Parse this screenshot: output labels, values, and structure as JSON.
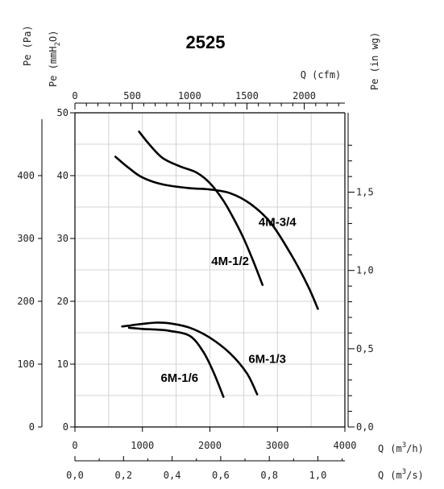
{
  "chart_data": {
    "type": "line",
    "title": "2525",
    "x_axes": {
      "bottom_primary": {
        "label_prefix": "Q",
        "unit": "(m3/h)",
        "unit_base": "(m",
        "unit_sup": "3",
        "unit_end": "/h)",
        "range": [
          0,
          4000
        ],
        "ticks": [
          "0",
          "1000",
          "2000",
          "3000",
          "4000"
        ]
      },
      "bottom_secondary": {
        "label_prefix": "Q",
        "unit": "(m3/s)",
        "unit_base": "(m",
        "unit_sup": "3",
        "unit_end": "/s)",
        "ticks": [
          "0,0",
          "0,2",
          "0,4",
          "0,6",
          "0,8",
          "1,0"
        ]
      },
      "top": {
        "label": "Q (cfm)",
        "ticks": [
          "0",
          "500",
          "1000",
          "1500",
          "2000"
        ]
      }
    },
    "y_axes": {
      "left_pa": {
        "label": "Pe (Pa)",
        "range": [
          0,
          500
        ],
        "ticks": [
          "0",
          "100",
          "200",
          "300",
          "400"
        ]
      },
      "left_mmh2o": {
        "label_base": "Pe (mmH",
        "label_sub": "2",
        "label_end": "O)",
        "range": [
          0,
          50
        ],
        "ticks": [
          "0",
          "10",
          "20",
          "30",
          "40",
          "50"
        ]
      },
      "right_inwg": {
        "label": "Pe (in wg)",
        "ticks": [
          "0,0",
          "0,5",
          "1,0",
          "1,5"
        ]
      }
    },
    "grid": true,
    "series": [
      {
        "name": "4M-3/4",
        "x": [
          600,
          800,
          1000,
          1300,
          1700,
          2000,
          2300,
          2600,
          2900,
          3200,
          3450,
          3600
        ],
        "y": [
          430,
          412,
          397,
          386,
          380,
          378,
          372,
          355,
          325,
          275,
          225,
          188
        ]
      },
      {
        "name": "4M-1/2",
        "x": [
          950,
          1100,
          1300,
          1550,
          1800,
          2000,
          2200,
          2350,
          2500,
          2650,
          2780
        ],
        "y": [
          470,
          450,
          428,
          415,
          405,
          388,
          360,
          332,
          300,
          262,
          226
        ]
      },
      {
        "name": "6M-1/3",
        "x": [
          700,
          850,
          1000,
          1200,
          1400,
          1700,
          2000,
          2300,
          2550,
          2700
        ],
        "y": [
          160,
          162,
          164,
          166,
          165,
          158,
          142,
          117,
          85,
          52
        ]
      },
      {
        "name": "6M-1/6",
        "x": [
          800,
          1000,
          1200,
          1400,
          1700,
          1900,
          2050,
          2200
        ],
        "y": [
          158,
          156,
          155,
          153,
          145,
          120,
          88,
          48
        ]
      }
    ]
  }
}
